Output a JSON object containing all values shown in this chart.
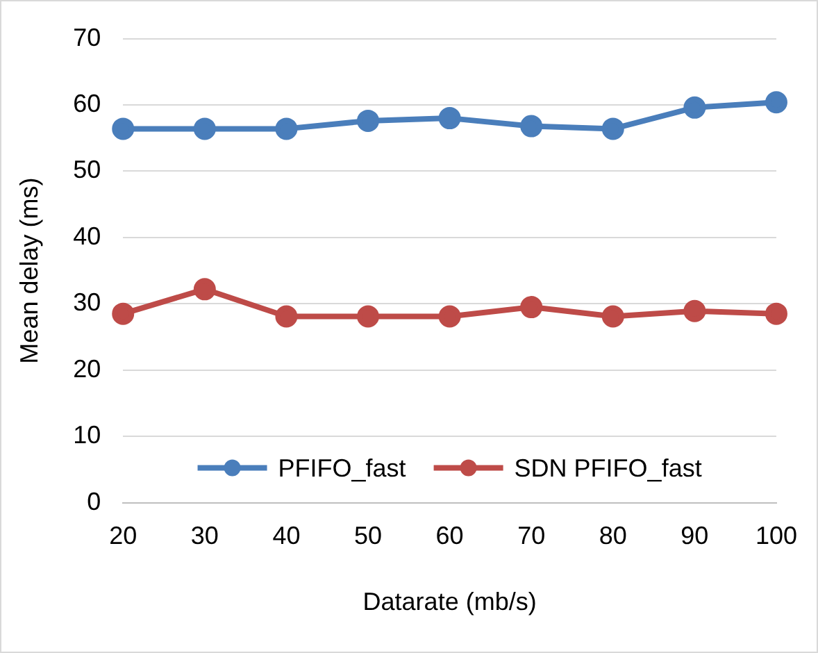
{
  "chart_data": {
    "type": "line",
    "xlabel": "Datarate (mb/s)",
    "ylabel": "Mean delay (ms)",
    "categories": [
      "20",
      "30",
      "40",
      "50",
      "60",
      "70",
      "80",
      "90",
      "100"
    ],
    "series": [
      {
        "name": "PFIFO_fast",
        "color": "#4a7ebb",
        "values": [
          56.4,
          56.4,
          56.4,
          57.6,
          58.0,
          56.8,
          56.4,
          59.6,
          60.4
        ]
      },
      {
        "name": "SDN PFIFO_fast",
        "color": "#be4b48",
        "values": [
          28.5,
          32.2,
          28.1,
          28.1,
          28.1,
          29.5,
          28.1,
          28.9,
          28.5
        ]
      }
    ],
    "ylim": [
      0,
      70
    ],
    "yticks": [
      0,
      10,
      20,
      30,
      40,
      50,
      60,
      70
    ],
    "grid": "y",
    "legend": "bottom",
    "marker": "circle",
    "line_style": "solid"
  }
}
